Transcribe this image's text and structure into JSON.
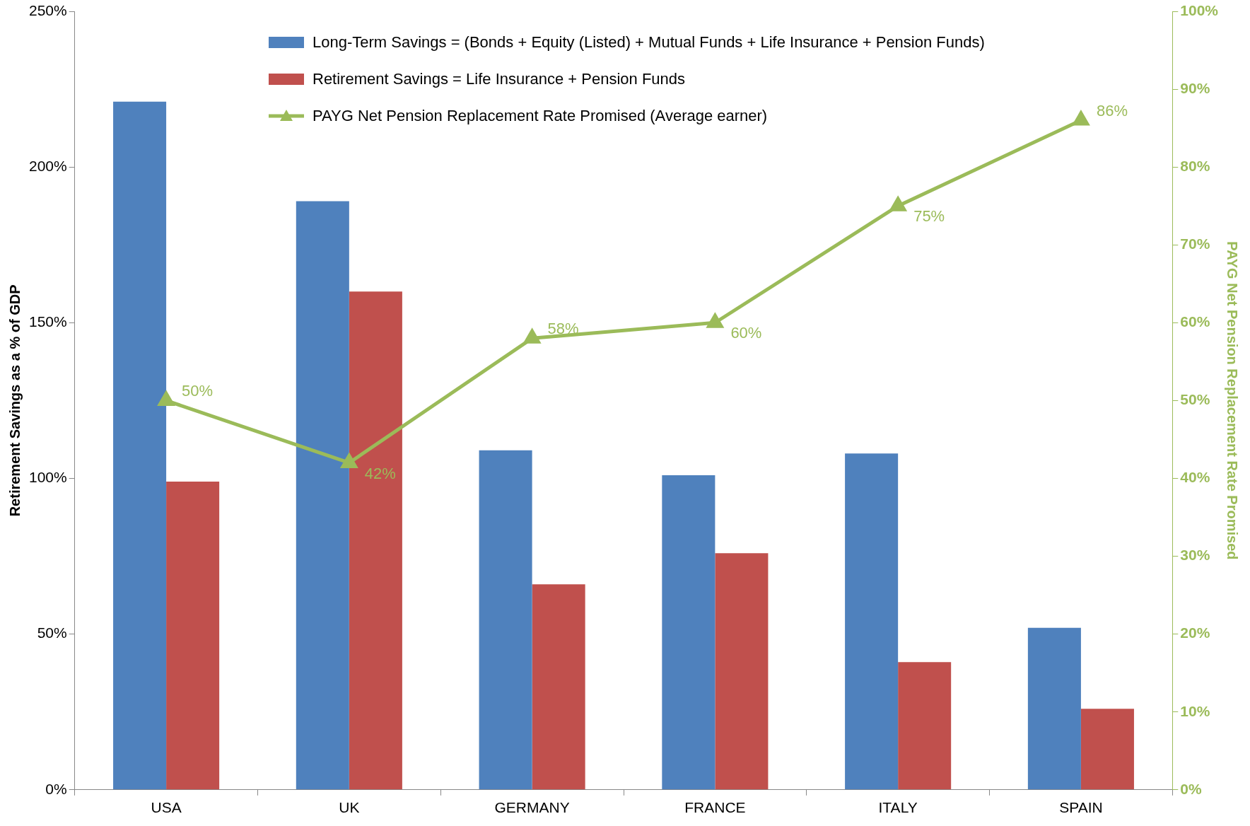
{
  "chart_data": {
    "type": "bar",
    "ylabel": "Retirement Savings as a % of GDP",
    "y2label": "PAYG Net Pension Replacement Rate Promised",
    "categories": [
      "USA",
      "UK",
      "GERMANY",
      "FRANCE",
      "ITALY",
      "SPAIN"
    ],
    "series": [
      {
        "name": "Long-Term Savings = (Bonds + Equity (Listed) + Mutual Funds + Life Insurance + Pension Funds)",
        "color": "#4f81bd",
        "values": [
          221,
          189,
          109,
          101,
          108,
          52
        ]
      },
      {
        "name": "Retirement Savings = Life Insurance + Pension Funds",
        "color": "#c0504d",
        "values": [
          99,
          160,
          66,
          76,
          41,
          26
        ]
      },
      {
        "name": "PAYG Net Pension Replacement Rate Promised (Average earner)",
        "type": "line",
        "axis": "y2",
        "color": "#9bbb59",
        "marker": "triangle",
        "values": [
          50,
          42,
          58,
          60,
          75,
          86
        ],
        "value_labels": [
          "50%",
          "42%",
          "58%",
          "60%",
          "75%",
          "86%"
        ]
      }
    ],
    "ylim": [
      0,
      250
    ],
    "yticks": [
      {
        "value": 0,
        "label": "0%"
      },
      {
        "value": 50,
        "label": "50%"
      },
      {
        "value": 100,
        "label": "100%"
      },
      {
        "value": 150,
        "label": "150%"
      },
      {
        "value": 200,
        "label": "200%"
      },
      {
        "value": 250,
        "label": "250%"
      }
    ],
    "y2lim": [
      0,
      100
    ],
    "y2ticks": [
      {
        "value": 0,
        "label": "0%"
      },
      {
        "value": 10,
        "label": "10%"
      },
      {
        "value": 20,
        "label": "20%"
      },
      {
        "value": 30,
        "label": "30%"
      },
      {
        "value": 40,
        "label": "40%"
      },
      {
        "value": 50,
        "label": "50%"
      },
      {
        "value": 60,
        "label": "60%"
      },
      {
        "value": 70,
        "label": "70%"
      },
      {
        "value": 80,
        "label": "80%"
      },
      {
        "value": 90,
        "label": "90%"
      },
      {
        "value": 100,
        "label": "100%"
      }
    ],
    "grid": false,
    "legend": "top"
  }
}
